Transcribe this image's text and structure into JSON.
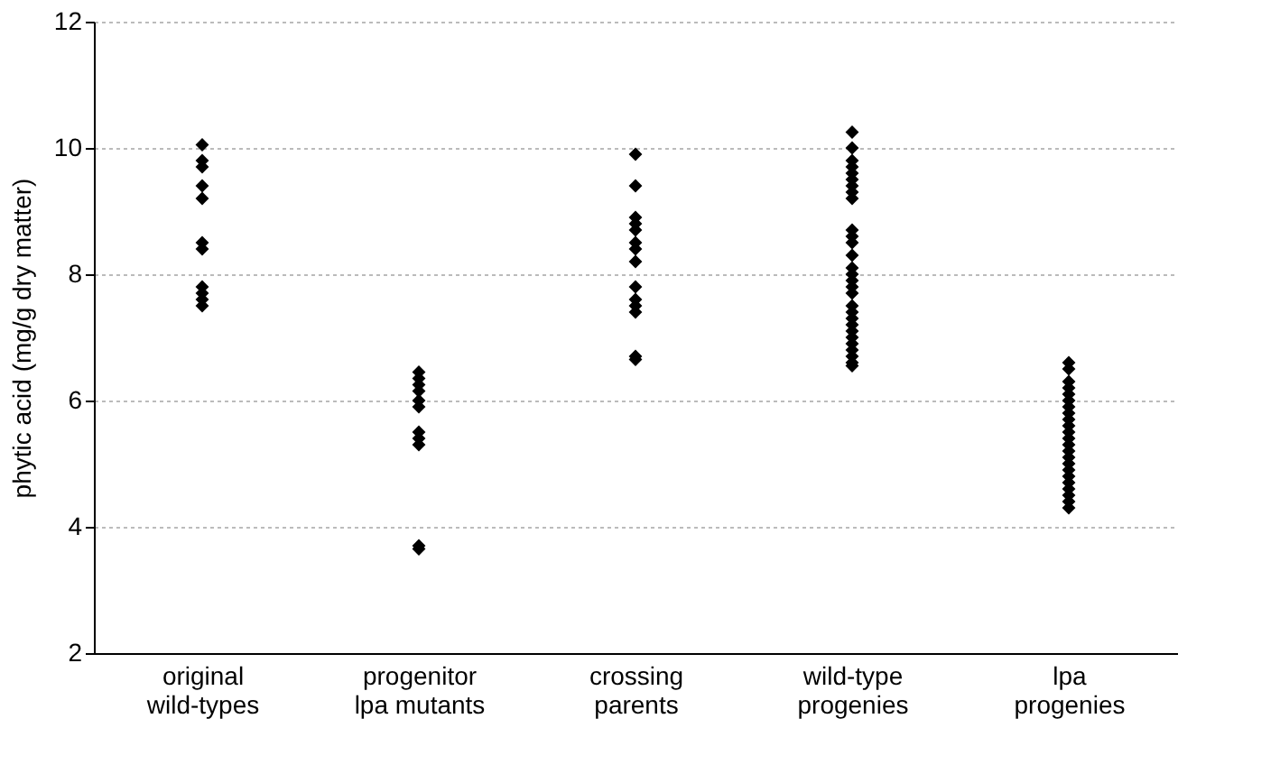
{
  "chart_data": {
    "type": "scatter",
    "ylabel": "phytic acid (mg/g dry matter)",
    "categories": [
      "original wild-types",
      "progenitor lpa mutants",
      "crossing parents",
      "wild-type progenies",
      "lpa progenies"
    ],
    "series": [
      {
        "color": "#000000",
        "x": [
          "original wild-types",
          "original wild-types",
          "original wild-types",
          "original wild-types",
          "original wild-types",
          "original wild-types",
          "original wild-types",
          "original wild-types",
          "original wild-types",
          "original wild-types",
          "original wild-types",
          "progenitor lpa mutants",
          "progenitor lpa mutants",
          "progenitor lpa mutants",
          "progenitor lpa mutants",
          "progenitor lpa mutants",
          "progenitor lpa mutants",
          "progenitor lpa mutants",
          "progenitor lpa mutants",
          "progenitor lpa mutants",
          "progenitor lpa mutants",
          "progenitor lpa mutants",
          "crossing parents",
          "crossing parents",
          "crossing parents",
          "crossing parents",
          "crossing parents",
          "crossing parents",
          "crossing parents",
          "crossing parents",
          "crossing parents",
          "crossing parents",
          "crossing parents",
          "crossing parents",
          "crossing parents",
          "crossing parents",
          "wild-type progenies",
          "wild-type progenies",
          "wild-type progenies",
          "wild-type progenies",
          "wild-type progenies",
          "wild-type progenies",
          "wild-type progenies",
          "wild-type progenies",
          "wild-type progenies",
          "wild-type progenies",
          "wild-type progenies",
          "wild-type progenies",
          "wild-type progenies",
          "wild-type progenies",
          "wild-type progenies",
          "wild-type progenies",
          "wild-type progenies",
          "wild-type progenies",
          "wild-type progenies",
          "wild-type progenies",
          "wild-type progenies",
          "wild-type progenies",
          "wild-type progenies",
          "wild-type progenies",
          "wild-type progenies",
          "wild-type progenies",
          "wild-type progenies",
          "wild-type progenies",
          "wild-type progenies",
          "lpa progenies",
          "lpa progenies",
          "lpa progenies",
          "lpa progenies",
          "lpa progenies",
          "lpa progenies",
          "lpa progenies",
          "lpa progenies",
          "lpa progenies",
          "lpa progenies",
          "lpa progenies",
          "lpa progenies",
          "lpa progenies",
          "lpa progenies",
          "lpa progenies",
          "lpa progenies",
          "lpa progenies",
          "lpa progenies",
          "lpa progenies",
          "lpa progenies",
          "lpa progenies",
          "lpa progenies",
          "lpa progenies"
        ],
        "values": [
          10.05,
          9.8,
          9.7,
          9.4,
          9.2,
          8.5,
          8.4,
          7.8,
          7.7,
          7.6,
          7.5,
          6.45,
          6.35,
          6.25,
          6.15,
          6.0,
          5.9,
          5.5,
          5.4,
          5.3,
          3.7,
          3.65,
          9.9,
          9.4,
          8.9,
          8.8,
          8.7,
          8.5,
          8.4,
          8.2,
          7.8,
          7.6,
          7.5,
          7.4,
          6.7,
          6.65,
          10.25,
          10.0,
          9.8,
          9.7,
          9.6,
          9.5,
          9.4,
          9.3,
          9.2,
          8.7,
          8.6,
          8.5,
          8.3,
          8.1,
          8.0,
          7.9,
          7.8,
          7.7,
          7.5,
          7.4,
          7.3,
          7.2,
          7.1,
          7.0,
          6.9,
          6.8,
          6.7,
          6.6,
          6.55,
          6.6,
          6.5,
          6.3,
          6.2,
          6.1,
          6.0,
          5.9,
          5.8,
          5.7,
          5.6,
          5.5,
          5.4,
          5.3,
          5.2,
          5.1,
          5.0,
          4.9,
          4.8,
          4.7,
          4.6,
          4.5,
          4.4,
          4.3
        ]
      }
    ],
    "ylim": [
      2,
      12
    ],
    "yticks": [
      2,
      4,
      6,
      8,
      10,
      12
    ],
    "grid": "y",
    "marker": "diamond"
  }
}
